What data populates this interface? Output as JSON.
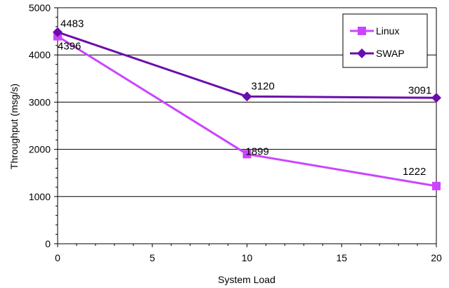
{
  "chart_data": {
    "type": "line",
    "title": "",
    "xlabel": "System Load",
    "ylabel": "Throughput (msg/s)",
    "xlim": [
      0,
      20
    ],
    "ylim": [
      0,
      5000
    ],
    "xticks": [
      0,
      5,
      10,
      15,
      20
    ],
    "yticks": [
      0,
      1000,
      2000,
      3000,
      4000,
      5000
    ],
    "grid": "horizontal",
    "legend_position": "top-right",
    "series": [
      {
        "name": "Linux",
        "color": "#cc44ff",
        "marker": "square",
        "points": [
          {
            "x": 0,
            "y": 4396,
            "label": "4396"
          },
          {
            "x": 10,
            "y": 1899,
            "label": "1899"
          },
          {
            "x": 20,
            "y": 1222,
            "label": "1222"
          }
        ]
      },
      {
        "name": "SWAP",
        "color": "#6a0dad",
        "marker": "diamond",
        "points": [
          {
            "x": 0,
            "y": 4483,
            "label": "4483"
          },
          {
            "x": 10,
            "y": 3120,
            "label": "3120"
          },
          {
            "x": 20,
            "y": 3091,
            "label": "3091"
          }
        ]
      }
    ]
  }
}
